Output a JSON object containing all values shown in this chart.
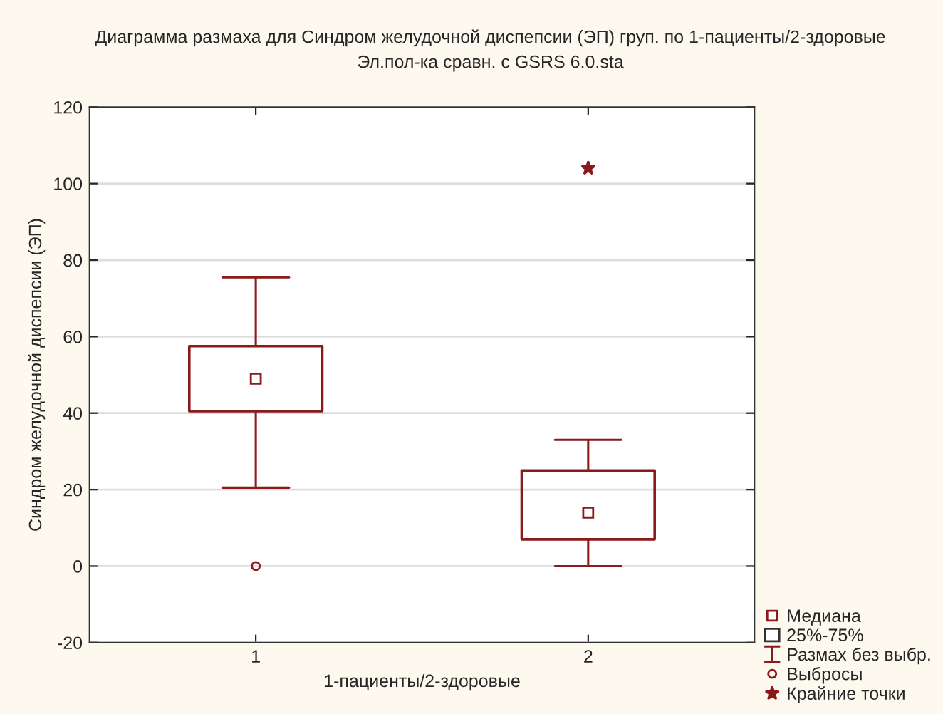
{
  "chart_data": {
    "type": "box",
    "title": "Диаграмма размаха для Синдром желудочной диспепсии (ЭП) груп. по 1-пациенты/2-здоровые",
    "subtitle": "Эл.пол-ка сравн. с GSRS 6.0.sta",
    "xlabel": "1-пациенты/2-здоровые",
    "ylabel": "Синдром желудочной диспепсии (ЭП)",
    "categories": [
      "1",
      "2"
    ],
    "series": [
      {
        "color": "#8b1a1a",
        "boxes": [
          {
            "low": 20.5,
            "q1": 40.5,
            "median": 49,
            "q3": 57.5,
            "high": 75.5,
            "outliers": [
              0
            ]
          },
          {
            "low": 0,
            "q1": 7,
            "median": 14,
            "q3": 25,
            "high": 33
          }
        ]
      },
      {
        "type": "scatter",
        "name": "Крайние точки",
        "color": "#8b1a1a",
        "marker": "star",
        "x": [
          "2"
        ],
        "values": [
          104
        ]
      }
    ],
    "annotations": [
      "Медиана",
      "25%-75%",
      "Размах без выбр.",
      "Выбросы"
    ],
    "ylim": [
      -20,
      120
    ],
    "yticks": [
      -20,
      0,
      20,
      40,
      60,
      80,
      100,
      120
    ],
    "grid": "y",
    "legend": "bottom right"
  }
}
